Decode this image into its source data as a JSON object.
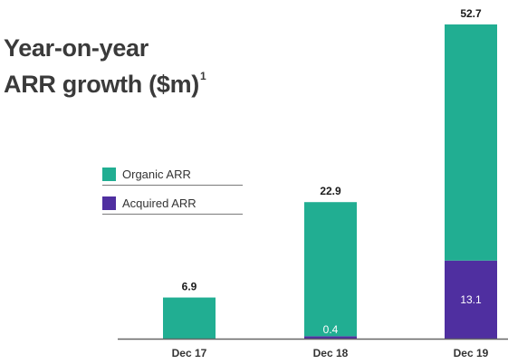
{
  "title_line1": "Year-on-year",
  "title_line2": "ARR growth ($m)",
  "title_footnote": "1",
  "colors": {
    "organic": "#21ae92",
    "acquired": "#4f2fa0",
    "axis": "#666666"
  },
  "chart_data": {
    "type": "bar",
    "stacked": true,
    "categories": [
      "Dec 17",
      "Dec 18",
      "Dec 19"
    ],
    "series": [
      {
        "name": "Acquired ARR",
        "values": [
          0,
          0.4,
          13.1
        ],
        "value_labels": [
          "",
          "0.4",
          "13.1"
        ]
      },
      {
        "name": "Organic ARR",
        "values": [
          6.9,
          22.5,
          39.6
        ]
      }
    ],
    "totals": [
      6.9,
      22.9,
      52.7
    ],
    "total_labels": [
      "6.9",
      "22.9",
      "52.7"
    ],
    "legend": [
      "Organic ARR",
      "Acquired ARR"
    ],
    "legend_position": "middle-left",
    "ylim": [
      0,
      55
    ],
    "grid": false
  }
}
